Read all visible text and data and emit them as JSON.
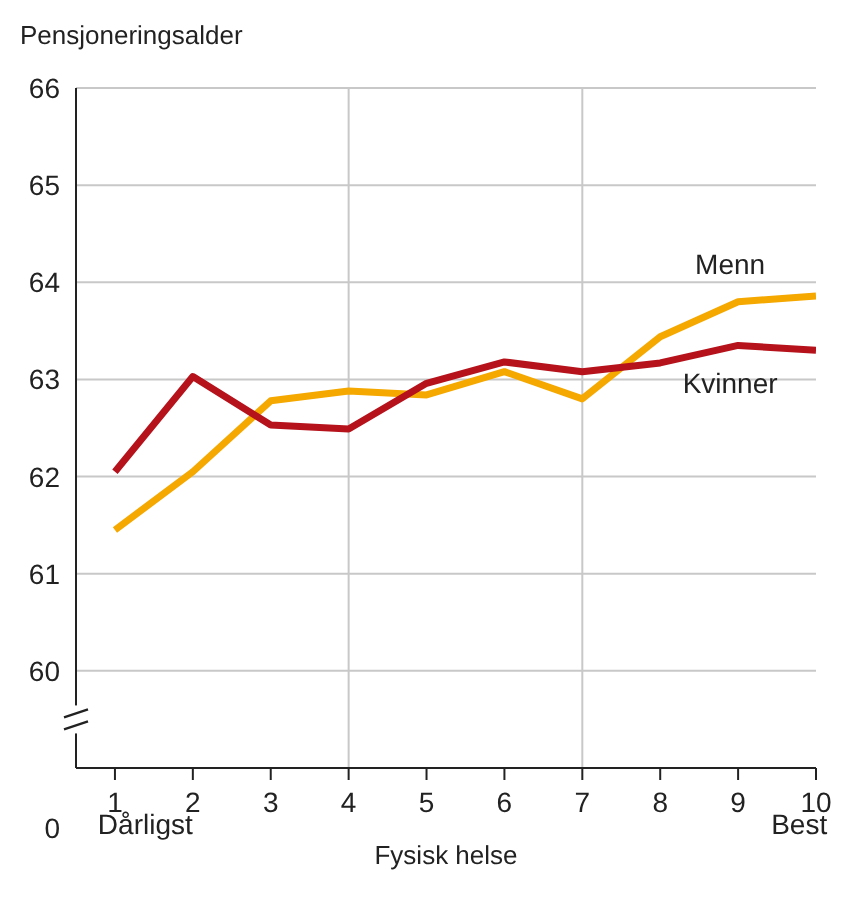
{
  "chart_data": {
    "type": "line",
    "ylabel": "Pensjoneringsalder",
    "xlabel": "Fysisk helse",
    "x": [
      1,
      2,
      3,
      4,
      5,
      6,
      7,
      8,
      9,
      10
    ],
    "series": [
      {
        "name": "Menn",
        "color": "#f5a800",
        "values": [
          61.45,
          62.05,
          62.78,
          62.88,
          62.84,
          63.08,
          62.8,
          63.44,
          63.8,
          63.86
        ]
      },
      {
        "name": "Kvinner",
        "color": "#b5121b",
        "values": [
          62.05,
          63.03,
          62.53,
          62.49,
          62.96,
          63.18,
          63.08,
          63.17,
          63.35,
          63.3
        ]
      }
    ],
    "xlim": [
      0.5,
      10
    ],
    "xticks": [
      1,
      2,
      3,
      4,
      5,
      6,
      7,
      8,
      9,
      10
    ],
    "ylim": [
      59,
      66
    ],
    "yticks": [
      60,
      61,
      62,
      63,
      64,
      65,
      66
    ],
    "grid": "y",
    "legend": false,
    "marker": "none",
    "line_style": "solid",
    "ref_lines": [
      {
        "axis": "x",
        "value": 4,
        "label": null,
        "color": "#c8c8c8"
      },
      {
        "axis": "x",
        "value": 7,
        "label": null,
        "color": "#c8c8c8"
      }
    ],
    "annotations": [
      "Dårligst",
      "Best",
      "0"
    ]
  }
}
